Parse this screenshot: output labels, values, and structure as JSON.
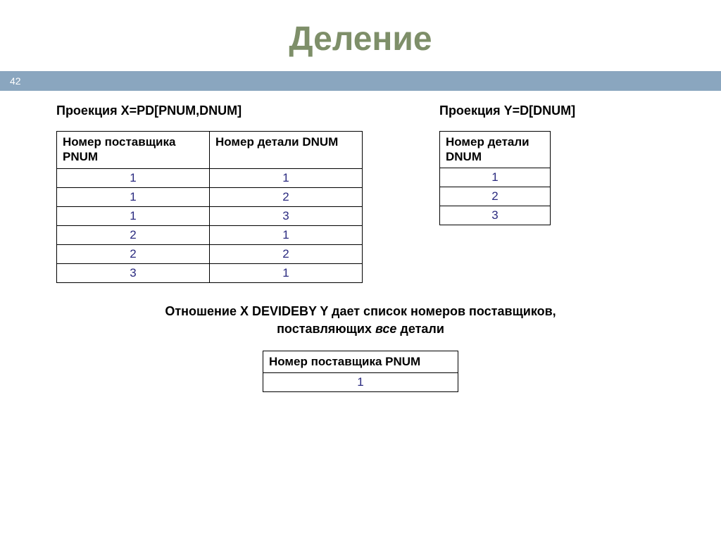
{
  "title": "Деление",
  "pageNumber": "42",
  "projX": {
    "caption": "Проекция X=PD[PNUM,DNUM]",
    "headers": [
      "Номер поставщика PNUM",
      "Номер детали DNUM"
    ],
    "rows": [
      [
        "1",
        "1"
      ],
      [
        "1",
        "2"
      ],
      [
        "1",
        "3"
      ],
      [
        "2",
        "1"
      ],
      [
        "2",
        "2"
      ],
      [
        "3",
        "1"
      ]
    ]
  },
  "projY": {
    "caption": "Проекция Y=D[DNUM]",
    "header": "Номер детали DNUM",
    "rows": [
      "1",
      "2",
      "3"
    ]
  },
  "statement": {
    "line1": "Отношение X DEVIDEBY Y дает список номеров поставщиков,",
    "line2a": "поставляющих ",
    "line2italic": "все",
    "line2b": " детали"
  },
  "result": {
    "header": "Номер поставщика PNUM",
    "rows": [
      "1"
    ]
  }
}
